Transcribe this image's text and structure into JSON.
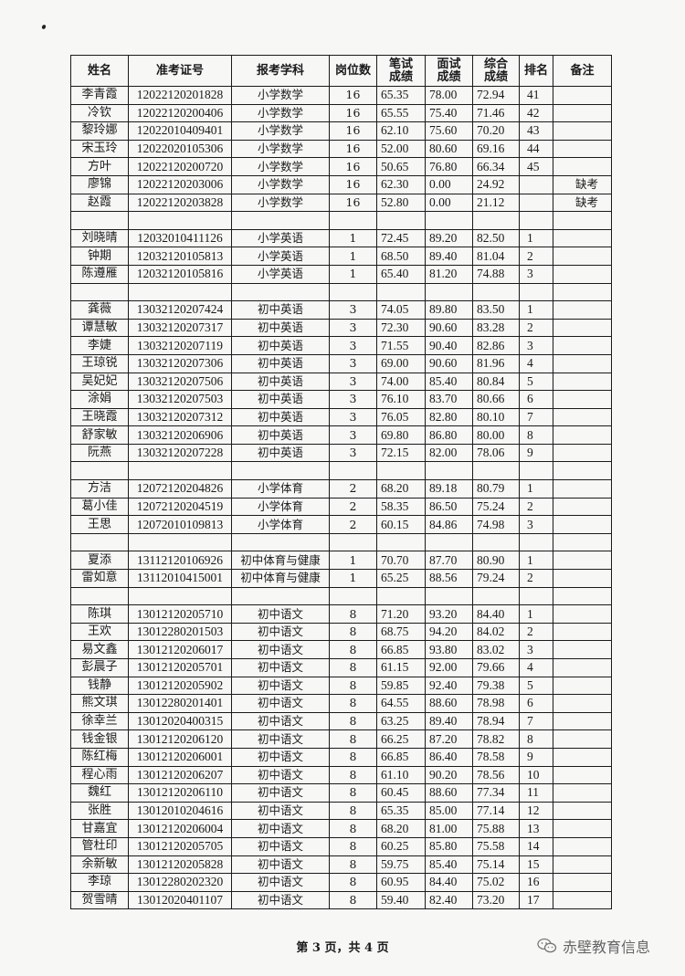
{
  "table": {
    "headers": [
      "姓名",
      "准考证号",
      "报考学科",
      "岗位数",
      "笔试\n成绩",
      "面试\n成绩",
      "综合\n成绩",
      "排名",
      "备注"
    ],
    "rows": [
      [
        "李青霞",
        "12022120201828",
        "小学数学",
        "16",
        "65.35",
        "78.00",
        "72.94",
        "41",
        ""
      ],
      [
        "冷钦",
        "12022120200406",
        "小学数学",
        "16",
        "65.55",
        "75.40",
        "71.46",
        "42",
        ""
      ],
      [
        "黎玲娜",
        "12022010409401",
        "小学数学",
        "16",
        "62.10",
        "75.60",
        "70.20",
        "43",
        ""
      ],
      [
        "宋玉玲",
        "12022020105306",
        "小学数学",
        "16",
        "52.00",
        "80.60",
        "69.16",
        "44",
        ""
      ],
      [
        "方叶",
        "12022120200720",
        "小学数学",
        "16",
        "50.65",
        "76.80",
        "66.34",
        "45",
        ""
      ],
      [
        "廖锦",
        "12022120203006",
        "小学数学",
        "16",
        "62.30",
        "0.00",
        "24.92",
        "",
        "缺考"
      ],
      [
        "赵霞",
        "12022120203828",
        "小学数学",
        "16",
        "52.80",
        "0.00",
        "21.12",
        "",
        "缺考"
      ],
      [],
      [
        "刘晓晴",
        "12032010411126",
        "小学英语",
        "1",
        "72.45",
        "89.20",
        "82.50",
        "1",
        ""
      ],
      [
        "钟期",
        "12032120105813",
        "小学英语",
        "1",
        "68.50",
        "89.40",
        "81.04",
        "2",
        ""
      ],
      [
        "陈遵雁",
        "12032120105816",
        "小学英语",
        "1",
        "65.40",
        "81.20",
        "74.88",
        "3",
        ""
      ],
      [],
      [
        "龚薇",
        "13032120207424",
        "初中英语",
        "3",
        "74.05",
        "89.80",
        "83.50",
        "1",
        ""
      ],
      [
        "谭慧敏",
        "13032120207317",
        "初中英语",
        "3",
        "72.30",
        "90.60",
        "83.28",
        "2",
        ""
      ],
      [
        "李婕",
        "13032120207119",
        "初中英语",
        "3",
        "71.55",
        "90.40",
        "82.86",
        "3",
        ""
      ],
      [
        "王琼锐",
        "13032120207306",
        "初中英语",
        "3",
        "69.00",
        "90.60",
        "81.96",
        "4",
        ""
      ],
      [
        "吴妃妃",
        "13032120207506",
        "初中英语",
        "3",
        "74.00",
        "85.40",
        "80.84",
        "5",
        ""
      ],
      [
        "涂娟",
        "13032120207503",
        "初中英语",
        "3",
        "76.10",
        "83.70",
        "80.66",
        "6",
        ""
      ],
      [
        "王晓霞",
        "13032120207312",
        "初中英语",
        "3",
        "76.05",
        "82.80",
        "80.10",
        "7",
        ""
      ],
      [
        "舒家敏",
        "13032120206906",
        "初中英语",
        "3",
        "69.80",
        "86.80",
        "80.00",
        "8",
        ""
      ],
      [
        "阮燕",
        "13032120207228",
        "初中英语",
        "3",
        "72.15",
        "82.00",
        "78.06",
        "9",
        ""
      ],
      [],
      [
        "方洁",
        "12072120204826",
        "小学体育",
        "2",
        "68.20",
        "89.18",
        "80.79",
        "1",
        ""
      ],
      [
        "葛小佳",
        "12072120204519",
        "小学体育",
        "2",
        "58.35",
        "86.50",
        "75.24",
        "2",
        ""
      ],
      [
        "王思",
        "12072010109813",
        "小学体育",
        "2",
        "60.15",
        "84.86",
        "74.98",
        "3",
        ""
      ],
      [],
      [
        "夏添",
        "13112120106926",
        "初中体育与健康",
        "1",
        "70.70",
        "87.70",
        "80.90",
        "1",
        ""
      ],
      [
        "雷如意",
        "13112010415001",
        "初中体育与健康",
        "1",
        "65.25",
        "88.56",
        "79.24",
        "2",
        ""
      ],
      [],
      [
        "陈琪",
        "13012120205710",
        "初中语文",
        "8",
        "71.20",
        "93.20",
        "84.40",
        "1",
        ""
      ],
      [
        "王欢",
        "13012280201503",
        "初中语文",
        "8",
        "68.75",
        "94.20",
        "84.02",
        "2",
        ""
      ],
      [
        "易文鑫",
        "13012120206017",
        "初中语文",
        "8",
        "66.85",
        "93.80",
        "83.02",
        "3",
        ""
      ],
      [
        "彭晨子",
        "13012120205701",
        "初中语文",
        "8",
        "61.15",
        "92.00",
        "79.66",
        "4",
        ""
      ],
      [
        "钱静",
        "13012120205902",
        "初中语文",
        "8",
        "59.85",
        "92.40",
        "79.38",
        "5",
        ""
      ],
      [
        "熊文琪",
        "13012280201401",
        "初中语文",
        "8",
        "64.55",
        "88.60",
        "78.98",
        "6",
        ""
      ],
      [
        "徐幸兰",
        "13012020400315",
        "初中语文",
        "8",
        "63.25",
        "89.40",
        "78.94",
        "7",
        ""
      ],
      [
        "钱金银",
        "13012120206120",
        "初中语文",
        "8",
        "66.25",
        "87.20",
        "78.82",
        "8",
        ""
      ],
      [
        "陈红梅",
        "13012120206001",
        "初中语文",
        "8",
        "66.85",
        "86.40",
        "78.58",
        "9",
        ""
      ],
      [
        "程心雨",
        "13012120206207",
        "初中语文",
        "8",
        "61.10",
        "90.20",
        "78.56",
        "10",
        ""
      ],
      [
        "魏红",
        "13012120206110",
        "初中语文",
        "8",
        "60.45",
        "88.60",
        "77.34",
        "11",
        ""
      ],
      [
        "张胜",
        "13012010204616",
        "初中语文",
        "8",
        "65.35",
        "85.00",
        "77.14",
        "12",
        ""
      ],
      [
        "甘嘉宜",
        "13012120206004",
        "初中语文",
        "8",
        "68.20",
        "81.00",
        "75.88",
        "13",
        ""
      ],
      [
        "管杜印",
        "13012120205705",
        "初中语文",
        "8",
        "60.25",
        "85.80",
        "75.58",
        "14",
        ""
      ],
      [
        "余新敏",
        "13012120205828",
        "初中语文",
        "8",
        "59.75",
        "85.40",
        "75.14",
        "15",
        ""
      ],
      [
        "李琼",
        "13012280202320",
        "初中语文",
        "8",
        "60.95",
        "84.40",
        "75.02",
        "16",
        ""
      ],
      [
        "贺雪晴",
        "13012020401107",
        "初中语文",
        "8",
        "59.40",
        "82.40",
        "73.20",
        "17",
        ""
      ]
    ]
  },
  "footer": {
    "page_text": "第 3 页，共 4 页"
  },
  "watermark": {
    "text": "赤壁教育信息",
    "icon": "wechat-icon"
  }
}
